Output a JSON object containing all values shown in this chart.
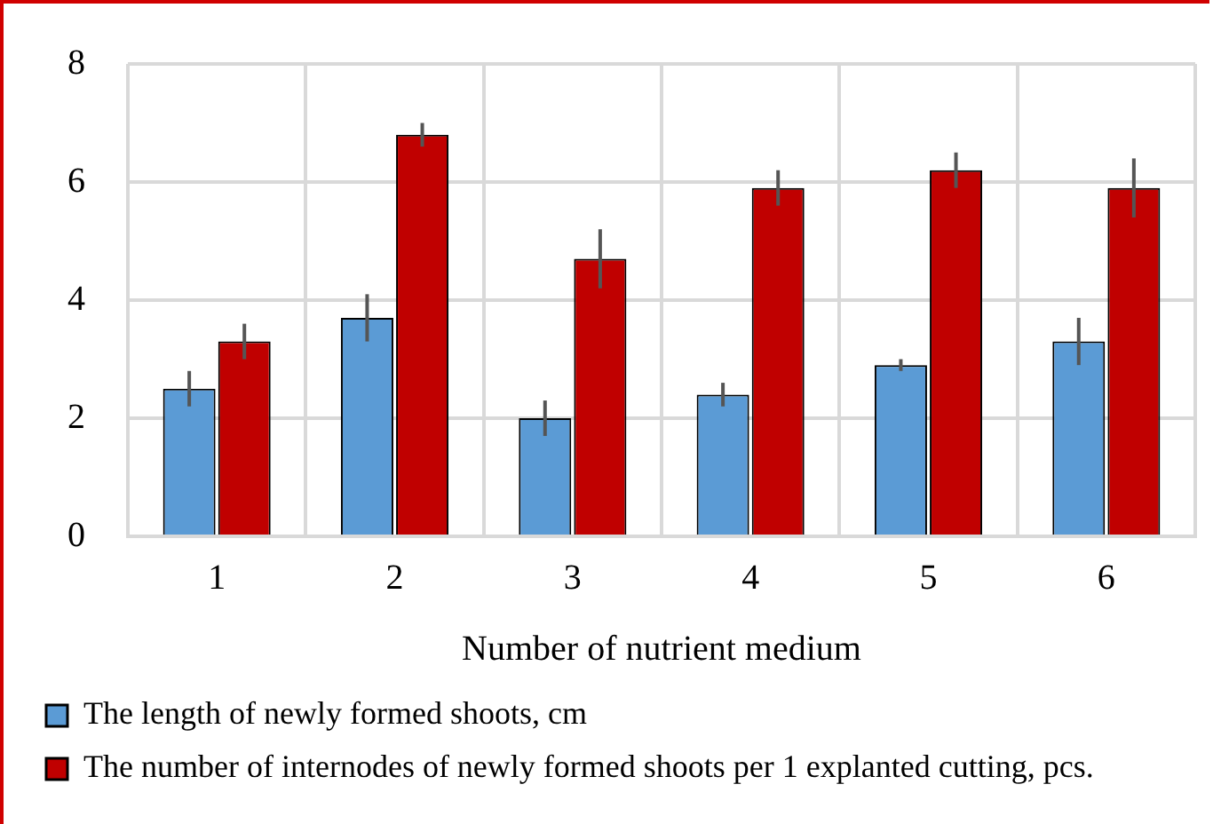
{
  "chart_data": {
    "type": "bar",
    "xlabel": "Number of nutrient medium",
    "categories": [
      "1",
      "2",
      "3",
      "4",
      "5",
      "6"
    ],
    "series": [
      {
        "name": "The length of newly formed shoots, cm",
        "color": "#5b9bd5",
        "values": [
          2.5,
          3.7,
          2.0,
          2.4,
          2.9,
          3.3
        ],
        "errors": [
          0.3,
          0.4,
          0.3,
          0.2,
          0.1,
          0.4
        ]
      },
      {
        "name": "The number of internodes of newly formed shoots per 1 explanted cutting, pcs.",
        "color": "#c00000",
        "values": [
          3.3,
          6.8,
          4.7,
          5.9,
          6.2,
          5.9
        ],
        "errors": [
          0.3,
          0.2,
          0.5,
          0.3,
          0.3,
          0.5
        ]
      }
    ],
    "ylim": [
      0,
      8
    ],
    "yticks": [
      0,
      2,
      4,
      6,
      8
    ],
    "grid": true,
    "legend": "bottom"
  }
}
